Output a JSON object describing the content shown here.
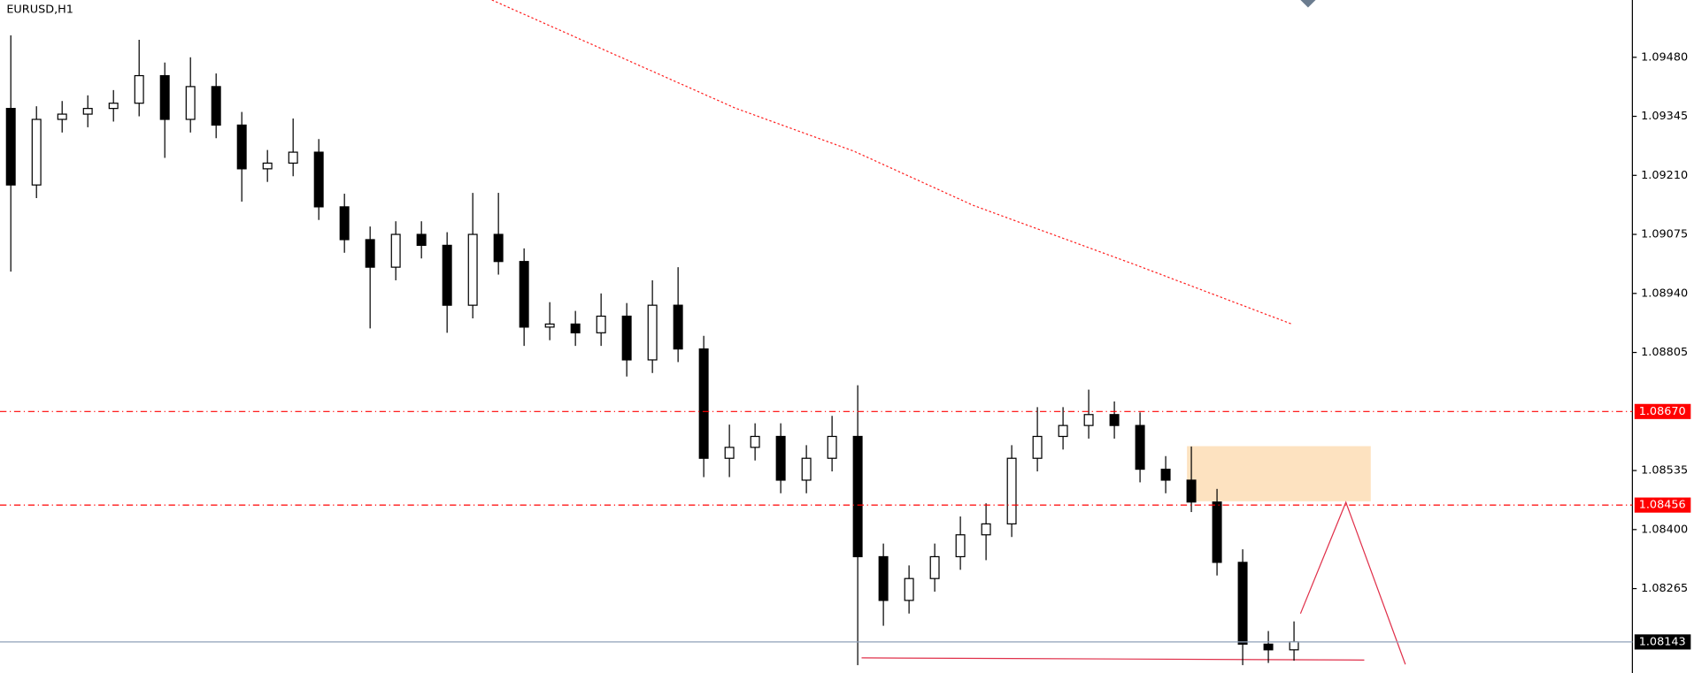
{
  "chart_data": {
    "type": "candlestick",
    "title": "EURUSD,H1",
    "open": [
      1.09363,
      1.09188,
      1.09338,
      1.0935,
      1.09363,
      1.09375,
      1.09438,
      1.09338,
      1.09413,
      1.09325,
      1.09225,
      1.09238,
      1.09263,
      1.09138,
      1.09063,
      1.09,
      1.09075,
      1.0905,
      1.08913,
      1.09075,
      1.09013,
      1.08863,
      1.0887,
      1.0885,
      1.08888,
      1.08788,
      1.08913,
      1.08813,
      1.08563,
      1.08588,
      1.08613,
      1.08513,
      1.08563,
      1.08613,
      1.08338,
      1.08238,
      1.08288,
      1.08338,
      1.08388,
      1.08413,
      1.08563,
      1.08613,
      1.08638,
      1.08663,
      1.08638,
      1.08538,
      1.08513,
      1.08463,
      1.08325,
      1.08138,
      1.08125
    ],
    "high": [
      1.0953,
      1.09368,
      1.0938,
      1.09393,
      1.09405,
      1.0952,
      1.09468,
      1.0948,
      1.09443,
      1.09355,
      1.09268,
      1.0934,
      1.09293,
      1.09168,
      1.09093,
      1.09105,
      1.09105,
      1.0908,
      1.0917,
      1.0917,
      1.09043,
      1.0892,
      1.089,
      1.0894,
      1.08918,
      1.0897,
      1.09,
      1.08843,
      1.0864,
      1.08643,
      1.08643,
      1.08593,
      1.0866,
      1.0873,
      1.08368,
      1.08318,
      1.08368,
      1.0843,
      1.0846,
      1.08593,
      1.0868,
      1.0868,
      1.0872,
      1.08693,
      1.08668,
      1.08568,
      1.0859,
      1.08493,
      1.08355,
      1.08168,
      1.0819
    ],
    "low": [
      1.0899,
      1.09158,
      1.09308,
      1.0932,
      1.09333,
      1.09345,
      1.0925,
      1.09308,
      1.09295,
      1.0915,
      1.09195,
      1.09208,
      1.09108,
      1.09033,
      1.0886,
      1.0897,
      1.0902,
      1.0885,
      1.08883,
      1.08983,
      1.0882,
      1.08833,
      1.0882,
      1.0882,
      1.0875,
      1.08758,
      1.08783,
      1.0852,
      1.0852,
      1.08558,
      1.08483,
      1.08483,
      1.08533,
      1.0809,
      1.0818,
      1.08208,
      1.08258,
      1.08308,
      1.0833,
      1.08383,
      1.08533,
      1.08583,
      1.08608,
      1.08608,
      1.08508,
      1.08483,
      1.0844,
      1.08295,
      1.0809,
      1.08095,
      1.081
    ],
    "close": [
      1.09188,
      1.09338,
      1.0935,
      1.09363,
      1.09375,
      1.09438,
      1.09338,
      1.09413,
      1.09325,
      1.09225,
      1.09238,
      1.09263,
      1.09138,
      1.09063,
      1.09,
      1.09075,
      1.0905,
      1.08913,
      1.09075,
      1.09013,
      1.08863,
      1.0887,
      1.0885,
      1.08888,
      1.08788,
      1.08913,
      1.08813,
      1.08563,
      1.08588,
      1.08613,
      1.08513,
      1.08563,
      1.08613,
      1.08338,
      1.08238,
      1.08288,
      1.08338,
      1.08388,
      1.08413,
      1.08563,
      1.08613,
      1.08638,
      1.08663,
      1.08638,
      1.08538,
      1.08513,
      1.08463,
      1.08325,
      1.08138,
      1.08125,
      1.08143
    ],
    "up_color": "#ffffff",
    "down_color": "#000000",
    "ylim": [
      1.08072,
      1.09611
    ],
    "yticks": [
      {
        "value": 1.0948,
        "label": "1.09480"
      },
      1.09345,
      {
        "value": 1.0921,
        "label": "1.09210"
      },
      1.09075,
      {
        "value": 1.0894,
        "label": "1.08940"
      },
      1.08805,
      {
        "value": 1.08535,
        "label": "1.08535"
      },
      {
        "value": 1.084,
        "label": "1.08400"
      },
      1.08265
    ],
    "levels": [
      {
        "value": 1.0867,
        "label": "1.08670"
      },
      {
        "value": 1.08456,
        "label": "1.08456"
      }
    ],
    "level_color": "#ff0000",
    "current_price": {
      "value": 1.08143,
      "label": "1.08143"
    },
    "current_color": "#8fa1b8"
  }
}
